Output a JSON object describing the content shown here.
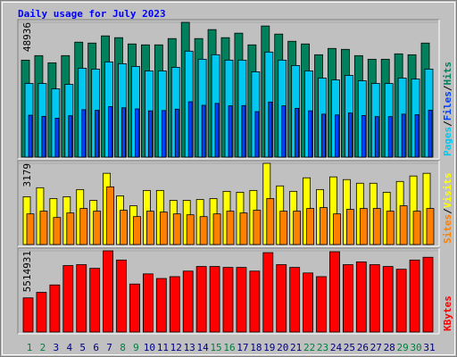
{
  "chart_data": [
    {
      "type": "bar",
      "title": "Daily usage for July 2023",
      "ylim": [
        0,
        48936
      ],
      "yticks": [
        48936
      ],
      "legend_separator": "/",
      "series": [
        {
          "name": "Pages",
          "color": "#00c8f0",
          "values": [
            26730,
            26730,
            24780,
            26410,
            32270,
            31950,
            34560,
            33900,
            32930,
            31300,
            31300,
            32600,
            38470,
            35530,
            37160,
            35210,
            35210,
            30970,
            38140,
            35210,
            33250,
            31300,
            28690,
            28040,
            29670,
            27710,
            26730,
            26730,
            28690,
            28360,
            31950
          ]
        },
        {
          "name": "Files",
          "color": "#0040ff",
          "values": [
            15200,
            14800,
            14100,
            15000,
            17200,
            17000,
            18300,
            17900,
            17500,
            16800,
            16900,
            17400,
            20100,
            18800,
            19500,
            18600,
            18700,
            16500,
            20000,
            18600,
            17700,
            16800,
            15600,
            15300,
            16000,
            15100,
            14700,
            14700,
            15600,
            15400,
            17000
          ]
        },
        {
          "name": "Hits",
          "color": "#00805c",
          "values": [
            35200,
            36840,
            34230,
            36840,
            41730,
            41400,
            44010,
            43360,
            41080,
            40750,
            40750,
            43030,
            48936,
            43030,
            46290,
            43360,
            44990,
            40750,
            47600,
            44660,
            42050,
            41080,
            37160,
            39450,
            39120,
            36840,
            35530,
            35530,
            37490,
            37160,
            41400
          ]
        }
      ]
    },
    {
      "type": "bar",
      "ylim": [
        0,
        3179
      ],
      "yticks": [
        3179
      ],
      "legend_separator": "/",
      "series": [
        {
          "name": "Sites",
          "color": "#ff8000",
          "values": [
            1200,
            1306,
            1059,
            1236,
            1412,
            1306,
            2259,
            1341,
            1094,
            1306,
            1271,
            1200,
            1165,
            1094,
            1200,
            1306,
            1236,
            1341,
            1800,
            1306,
            1306,
            1412,
            1447,
            1200,
            1377,
            1412,
            1412,
            1306,
            1518,
            1306,
            1412
          ]
        },
        {
          "name": "Visits",
          "color": "#ffff00",
          "values": [
            1871,
            2224,
            1800,
            1871,
            2153,
            1730,
            2789,
            1906,
            1518,
            2118,
            2118,
            1730,
            1730,
            1765,
            1800,
            2083,
            2047,
            2118,
            3179,
            2295,
            2083,
            2612,
            2153,
            2648,
            2542,
            2400,
            2400,
            2047,
            2470,
            2683,
            2789
          ]
        }
      ]
    },
    {
      "type": "bar",
      "ylim": [
        0,
        5514931
      ],
      "yticks": [
        5514931
      ],
      "categories": [
        1,
        2,
        3,
        4,
        5,
        6,
        7,
        8,
        9,
        10,
        11,
        12,
        13,
        14,
        15,
        16,
        17,
        18,
        19,
        20,
        21,
        22,
        23,
        24,
        25,
        26,
        27,
        28,
        29,
        30,
        31
      ],
      "category_colors": [
        "#008040",
        "#008040",
        "#000080",
        "#000080",
        "#000080",
        "#000080",
        "#000080",
        "#008040",
        "#008040",
        "#000080",
        "#000080",
        "#000080",
        "#000080",
        "#000080",
        "#008040",
        "#008040",
        "#000080",
        "#000080",
        "#000080",
        "#000080",
        "#000080",
        "#008040",
        "#008040",
        "#000080",
        "#000080",
        "#000080",
        "#000080",
        "#000080",
        "#008040",
        "#008040",
        "#000080"
      ],
      "series": [
        {
          "name": "KBytes",
          "color": "#ff0000",
          "values": [
            2318800,
            2694800,
            3196200,
            4512200,
            4574900,
            4324200,
            5514931,
            4888300,
            3258800,
            3948200,
            3634900,
            3760200,
            4136200,
            4449600,
            4449600,
            4386900,
            4386900,
            4136200,
            5389600,
            4574900,
            4386900,
            4010900,
            3760200,
            5452300,
            4574900,
            4762900,
            4574900,
            4449600,
            4261600,
            4888300,
            5076300
          ]
        }
      ]
    }
  ]
}
